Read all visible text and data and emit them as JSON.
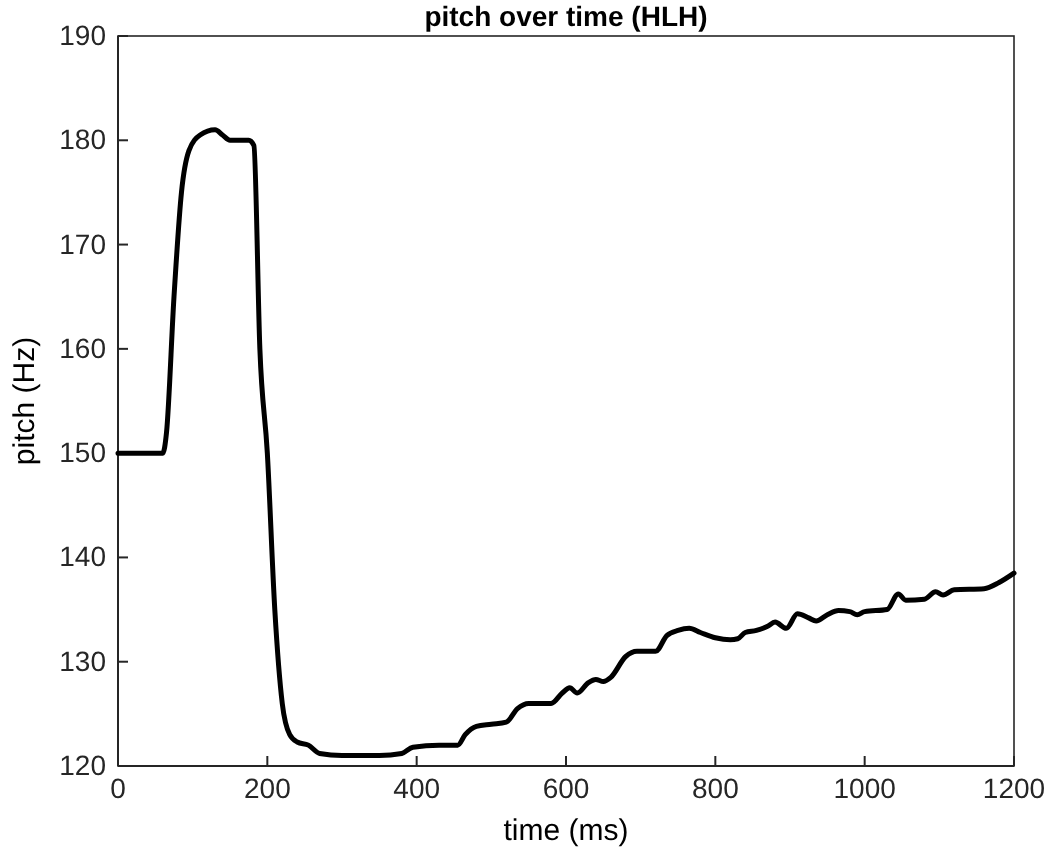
{
  "chart_data": {
    "type": "line",
    "title": "pitch over time (HLH)",
    "xlabel": "time (ms)",
    "ylabel": "pitch (Hz)",
    "xlim": [
      0,
      1200
    ],
    "xticks": [
      0,
      200,
      400,
      600,
      800,
      1000,
      1200
    ],
    "ylim": [
      120,
      190
    ],
    "yticks": [
      120,
      130,
      140,
      150,
      160,
      170,
      180,
      190
    ],
    "grid": false,
    "series": [
      {
        "color": "#000000",
        "x": [
          0,
          60,
          65,
          75,
          85,
          95,
          110,
          130,
          140,
          150,
          175,
          182,
          190,
          200,
          210,
          220,
          230,
          240,
          255,
          270,
          300,
          350,
          380,
          395,
          430,
          455,
          465,
          480,
          500,
          520,
          535,
          550,
          580,
          595,
          605,
          615,
          630,
          640,
          650,
          660,
          680,
          695,
          720,
          735,
          750,
          765,
          780,
          800,
          820,
          830,
          840,
          855,
          870,
          880,
          895,
          910,
          925,
          935,
          950,
          965,
          980,
          990,
          1000,
          1030,
          1045,
          1055,
          1080,
          1095,
          1105,
          1120,
          1160,
          1180,
          1200
        ],
        "values": [
          150,
          150,
          152,
          165,
          175,
          179,
          180.5,
          181,
          180.5,
          180,
          180,
          179.5,
          160,
          150,
          135,
          126,
          123,
          122.3,
          122,
          121.2,
          121,
          121,
          121.2,
          121.8,
          122,
          122,
          123,
          123.8,
          124,
          124.2,
          125.5,
          126,
          126,
          127,
          127.5,
          127,
          128,
          128.3,
          128.1,
          128.5,
          130.5,
          131,
          131,
          132.5,
          133,
          133.2,
          132.8,
          132.3,
          132.1,
          132.2,
          132.8,
          133,
          133.4,
          133.8,
          133.2,
          134.6,
          134.2,
          133.9,
          134.5,
          134.9,
          134.8,
          134.5,
          134.8,
          135,
          136.5,
          135.9,
          136,
          136.7,
          136.4,
          136.9,
          137,
          137.6,
          138.5
        ]
      }
    ]
  }
}
